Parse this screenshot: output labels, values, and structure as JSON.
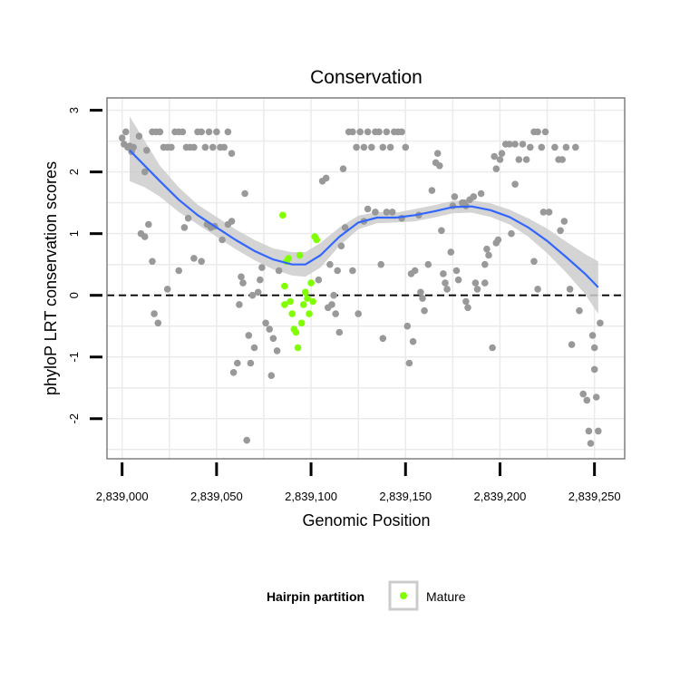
{
  "chart_data": {
    "type": "scatter",
    "title": "Conservation",
    "xlabel": "Genomic Position",
    "ylabel": "phyloP LRT conservation scores",
    "xlim": [
      2838992,
      2839266
    ],
    "ylim": [
      -2.65,
      3.2
    ],
    "x_ticks": [
      2839000,
      2839050,
      2839100,
      2839150,
      2839200,
      2839250
    ],
    "x_tick_labels": [
      "2,839,000",
      "2,839,050",
      "2,839,100",
      "2,839,150",
      "2,839,200",
      "2,839,250"
    ],
    "y_ticks": [
      -2,
      -1,
      0,
      1,
      2,
      3
    ],
    "y_tick_labels": [
      "-2",
      "-1",
      "0",
      "1",
      "2",
      "3"
    ],
    "grid": true,
    "reference_line": {
      "y": 0,
      "style": "dashed"
    },
    "legend": {
      "title": "Hairpin partition",
      "position": "bottom",
      "entries": [
        {
          "label": "Mature",
          "color": "#7fff00"
        }
      ]
    },
    "colors": {
      "hairpin": "#999999",
      "mature": "#7fff00",
      "smooth": "#3366ff",
      "band": "#cccccc",
      "zero_line": "#000000",
      "grid": "#ebebeb",
      "border": "#7f7f7f"
    },
    "series": [
      {
        "role": "hairpin",
        "points": [
          [
            2839000,
            2.55
          ],
          [
            2839002,
            2.65
          ],
          [
            2839001,
            2.45
          ],
          [
            2839003,
            2.4
          ],
          [
            2839004,
            2.42
          ],
          [
            2839006,
            2.4
          ],
          [
            2839005,
            2.33
          ],
          [
            2839009,
            2.58
          ],
          [
            2839013,
            2.35
          ],
          [
            2839016,
            2.65
          ],
          [
            2839018,
            2.65
          ],
          [
            2839020,
            2.65
          ],
          [
            2839022,
            2.4
          ],
          [
            2839024,
            2.4
          ],
          [
            2839026,
            2.4
          ],
          [
            2839028,
            2.65
          ],
          [
            2839030,
            2.65
          ],
          [
            2839032,
            2.65
          ],
          [
            2839034,
            2.4
          ],
          [
            2839036,
            2.4
          ],
          [
            2839038,
            2.4
          ],
          [
            2839040,
            2.65
          ],
          [
            2839042,
            2.65
          ],
          [
            2839044,
            2.4
          ],
          [
            2839046,
            2.65
          ],
          [
            2839048,
            2.4
          ],
          [
            2839050,
            2.65
          ],
          [
            2839052,
            2.4
          ],
          [
            2839054,
            2.4
          ],
          [
            2839056,
            2.65
          ],
          [
            2839058,
            2.3
          ],
          [
            2839012,
            2.0
          ],
          [
            2839010,
            1.0
          ],
          [
            2839012,
            0.95
          ],
          [
            2839014,
            1.15
          ],
          [
            2839016,
            0.55
          ],
          [
            2839017,
            -0.3
          ],
          [
            2839019,
            -0.45
          ],
          [
            2839024,
            0.1
          ],
          [
            2839030,
            0.4
          ],
          [
            2839033,
            1.1
          ],
          [
            2839035,
            1.25
          ],
          [
            2839038,
            0.6
          ],
          [
            2839042,
            0.55
          ],
          [
            2839045,
            1.15
          ],
          [
            2839047,
            1.1
          ],
          [
            2839049,
            1.12
          ],
          [
            2839053,
            0.9
          ],
          [
            2839056,
            1.15
          ],
          [
            2839058,
            1.2
          ],
          [
            2839059,
            -1.25
          ],
          [
            2839061,
            -1.1
          ],
          [
            2839062,
            -0.15
          ],
          [
            2839063,
            0.3
          ],
          [
            2839064,
            0.2
          ],
          [
            2839065,
            1.65
          ],
          [
            2839066,
            -2.35
          ],
          [
            2839067,
            -0.65
          ],
          [
            2839068,
            -1.1
          ],
          [
            2839069,
            0.0
          ],
          [
            2839070,
            -0.85
          ],
          [
            2839072,
            0.05
          ],
          [
            2839073,
            0.25
          ],
          [
            2839074,
            0.45
          ],
          [
            2839076,
            -0.45
          ],
          [
            2839078,
            -0.55
          ],
          [
            2839079,
            -1.3
          ],
          [
            2839080,
            -0.7
          ],
          [
            2839082,
            -0.9
          ],
          [
            2839083,
            0.4
          ],
          [
            2839104,
            0.25
          ],
          [
            2839106,
            1.85
          ],
          [
            2839108,
            1.9
          ],
          [
            2839109,
            -0.2
          ],
          [
            2839110,
            0.5
          ],
          [
            2839111,
            -0.15
          ],
          [
            2839112,
            0.0
          ],
          [
            2839113,
            -0.3
          ],
          [
            2839114,
            0.4
          ],
          [
            2839115,
            -0.6
          ],
          [
            2839116,
            0.8
          ],
          [
            2839117,
            2.05
          ],
          [
            2839118,
            1.1
          ],
          [
            2839120,
            2.65
          ],
          [
            2839122,
            2.65
          ],
          [
            2839124,
            2.4
          ],
          [
            2839126,
            2.65
          ],
          [
            2839128,
            2.4
          ],
          [
            2839130,
            2.65
          ],
          [
            2839132,
            2.4
          ],
          [
            2839134,
            2.65
          ],
          [
            2839136,
            2.65
          ],
          [
            2839138,
            2.4
          ],
          [
            2839140,
            2.65
          ],
          [
            2839142,
            2.4
          ],
          [
            2839144,
            2.65
          ],
          [
            2839146,
            2.65
          ],
          [
            2839148,
            2.65
          ],
          [
            2839150,
            2.4
          ],
          [
            2839122,
            0.4
          ],
          [
            2839125,
            -0.3
          ],
          [
            2839128,
            1.2
          ],
          [
            2839130,
            1.4
          ],
          [
            2839134,
            1.35
          ],
          [
            2839137,
            0.5
          ],
          [
            2839138,
            -0.7
          ],
          [
            2839140,
            1.35
          ],
          [
            2839143,
            1.35
          ],
          [
            2839148,
            1.25
          ],
          [
            2839151,
            -0.5
          ],
          [
            2839152,
            -1.1
          ],
          [
            2839153,
            0.35
          ],
          [
            2839154,
            -0.75
          ],
          [
            2839155,
            0.4
          ],
          [
            2839157,
            1.3
          ],
          [
            2839158,
            0.05
          ],
          [
            2839159,
            -0.05
          ],
          [
            2839160,
            -0.25
          ],
          [
            2839162,
            0.5
          ],
          [
            2839164,
            1.7
          ],
          [
            2839166,
            2.15
          ],
          [
            2839167,
            2.3
          ],
          [
            2839168,
            2.1
          ],
          [
            2839169,
            1.05
          ],
          [
            2839170,
            0.35
          ],
          [
            2839171,
            0.2
          ],
          [
            2839172,
            0.1
          ],
          [
            2839174,
            0.7
          ],
          [
            2839175,
            1.45
          ],
          [
            2839176,
            1.6
          ],
          [
            2839177,
            0.4
          ],
          [
            2839178,
            0.25
          ],
          [
            2839180,
            1.5
          ],
          [
            2839181,
            1.5
          ],
          [
            2839182,
            -0.1
          ],
          [
            2839183,
            -0.2
          ],
          [
            2839184,
            1.55
          ],
          [
            2839186,
            1.6
          ],
          [
            2839187,
            0.2
          ],
          [
            2839188,
            0.1
          ],
          [
            2839190,
            1.65
          ],
          [
            2839192,
            0.2
          ],
          [
            2839193,
            0.75
          ],
          [
            2839194,
            0.65
          ],
          [
            2839196,
            -0.85
          ],
          [
            2839197,
            2.25
          ],
          [
            2839198,
            2.05
          ],
          [
            2839199,
            0.9
          ],
          [
            2839200,
            2.2
          ],
          [
            2839201,
            2.3
          ],
          [
            2839203,
            2.45
          ],
          [
            2839205,
            2.45
          ],
          [
            2839206,
            1.0
          ],
          [
            2839208,
            2.45
          ],
          [
            2839210,
            2.2
          ],
          [
            2839212,
            2.45
          ],
          [
            2839214,
            2.2
          ],
          [
            2839216,
            2.4
          ],
          [
            2839218,
            2.65
          ],
          [
            2839220,
            2.65
          ],
          [
            2839222,
            2.4
          ],
          [
            2839224,
            2.65
          ],
          [
            2839218,
            0.55
          ],
          [
            2839220,
            0.1
          ],
          [
            2839223,
            1.35
          ],
          [
            2839226,
            1.35
          ],
          [
            2839229,
            2.4
          ],
          [
            2839231,
            2.2
          ],
          [
            2839233,
            2.2
          ],
          [
            2839235,
            2.4
          ],
          [
            2839237,
            0.1
          ],
          [
            2839238,
            -0.8
          ],
          [
            2839240,
            2.4
          ],
          [
            2839242,
            -0.25
          ],
          [
            2839244,
            -1.6
          ],
          [
            2839246,
            -1.7
          ],
          [
            2839247,
            -2.2
          ],
          [
            2839248,
            -2.4
          ],
          [
            2839249,
            -0.65
          ],
          [
            2839250,
            -1.2
          ],
          [
            2839251,
            -1.65
          ],
          [
            2839252,
            -2.2
          ],
          [
            2839253,
            -0.45
          ],
          [
            2839250,
            -0.85
          ],
          [
            2839232,
            1.05
          ],
          [
            2839234,
            1.2
          ],
          [
            2839208,
            1.8
          ],
          [
            2839198,
            0.85
          ],
          [
            2839192,
            0.5
          ],
          [
            2839182,
            1.45
          ]
        ]
      },
      {
        "name": "Mature",
        "role": "mature",
        "points": [
          [
            2839085,
            1.3
          ],
          [
            2839086,
            0.15
          ],
          [
            2839087,
            0.55
          ],
          [
            2839088,
            0.6
          ],
          [
            2839089,
            -0.1
          ],
          [
            2839090,
            -0.3
          ],
          [
            2839091,
            -0.55
          ],
          [
            2839092,
            -0.6
          ],
          [
            2839093,
            -0.85
          ],
          [
            2839094,
            0.65
          ],
          [
            2839095,
            -0.45
          ],
          [
            2839096,
            -0.15
          ],
          [
            2839097,
            0.05
          ],
          [
            2839098,
            -0.05
          ],
          [
            2839099,
            -0.3
          ],
          [
            2839100,
            0.2
          ],
          [
            2839101,
            -0.1
          ],
          [
            2839102,
            0.95
          ],
          [
            2839103,
            0.9
          ],
          [
            2839086,
            -0.15
          ]
        ]
      }
    ],
    "smooth": {
      "x": [
        2839004,
        2839012,
        2839020,
        2839030,
        2839040,
        2839050,
        2839060,
        2839070,
        2839080,
        2839090,
        2839097,
        2839105,
        2839115,
        2839125,
        2839135,
        2839145,
        2839155,
        2839165,
        2839175,
        2839185,
        2839195,
        2839205,
        2839215,
        2839225,
        2839235,
        2839245,
        2839252
      ],
      "y": [
        2.35,
        2.1,
        1.85,
        1.55,
        1.3,
        1.1,
        0.9,
        0.72,
        0.58,
        0.5,
        0.5,
        0.65,
        0.95,
        1.18,
        1.26,
        1.26,
        1.3,
        1.36,
        1.43,
        1.44,
        1.38,
        1.27,
        1.1,
        0.88,
        0.62,
        0.35,
        0.13
      ],
      "lower": [
        1.85,
        1.75,
        1.6,
        1.35,
        1.15,
        0.95,
        0.75,
        0.57,
        0.42,
        0.32,
        0.3,
        0.45,
        0.8,
        1.07,
        1.17,
        1.18,
        1.2,
        1.26,
        1.33,
        1.34,
        1.27,
        1.15,
        0.95,
        0.68,
        0.37,
        0.02,
        -0.3
      ],
      "upper": [
        2.9,
        2.5,
        2.1,
        1.75,
        1.47,
        1.27,
        1.07,
        0.9,
        0.76,
        0.7,
        0.7,
        0.85,
        1.1,
        1.29,
        1.35,
        1.34,
        1.4,
        1.46,
        1.53,
        1.54,
        1.49,
        1.39,
        1.25,
        1.08,
        0.87,
        0.67,
        0.55
      ]
    }
  }
}
